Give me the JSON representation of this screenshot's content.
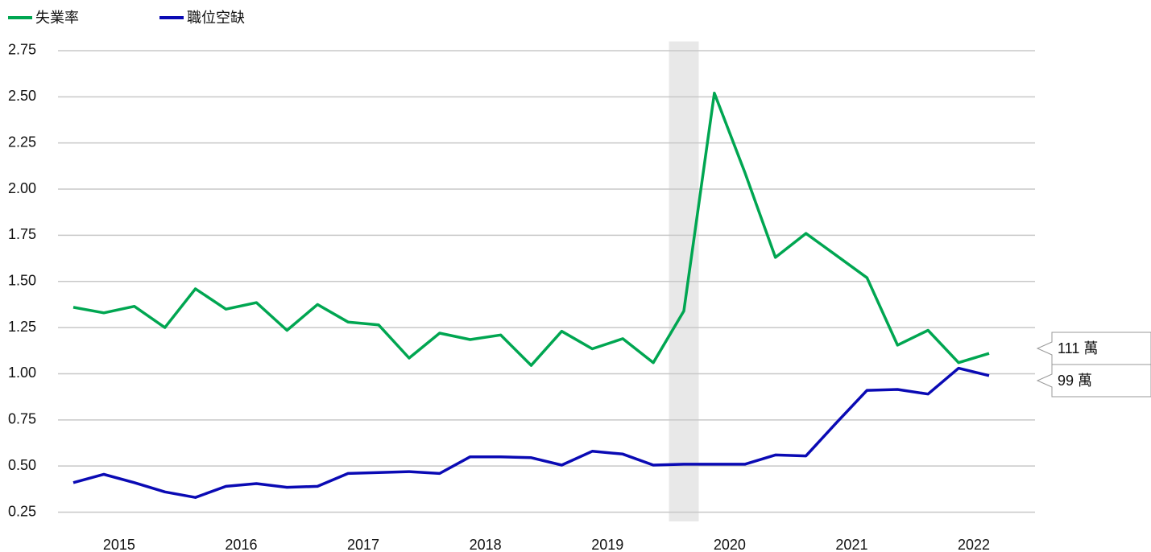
{
  "chart_data": {
    "type": "line",
    "x_labels": [
      "2015",
      "2016",
      "2017",
      "2018",
      "2019",
      "2020",
      "2021",
      "2022"
    ],
    "series": [
      {
        "name": "失業率",
        "color": "#00a651",
        "values": [
          1.36,
          1.33,
          1.365,
          1.25,
          1.46,
          1.35,
          1.385,
          1.235,
          1.375,
          1.28,
          1.265,
          1.085,
          1.22,
          1.185,
          1.21,
          1.045,
          1.23,
          1.135,
          1.19,
          1.06,
          1.34,
          2.52,
          2.09,
          1.63,
          1.76,
          1.64,
          1.52,
          1.155,
          1.235,
          1.06,
          1.11
        ]
      },
      {
        "name": "職位空缺",
        "color": "#0a0ab4",
        "values": [
          0.41,
          0.455,
          0.41,
          0.36,
          0.33,
          0.39,
          0.405,
          0.385,
          0.39,
          0.46,
          0.465,
          0.47,
          0.46,
          0.55,
          0.55,
          0.545,
          0.505,
          0.58,
          0.565,
          0.505,
          0.51,
          0.51,
          0.51,
          0.56,
          0.555,
          0.735,
          0.91,
          0.915,
          0.89,
          1.03,
          0.99
        ]
      }
    ],
    "highlight_index": 20,
    "annotations": [
      "111 萬",
      "99 萬"
    ],
    "ylim": [
      0.2,
      2.8
    ],
    "yticks": [
      0.25,
      {
        "value": 0.5,
        "label": "0.50"
      },
      0.75,
      {
        "value": 1,
        "label": "1.00"
      },
      1.25,
      {
        "value": 1.5,
        "label": "1.50"
      },
      1.75,
      {
        "value": 2,
        "label": "2.00"
      },
      2.25,
      {
        "value": 2.5,
        "label": "2.50"
      },
      2.75
    ],
    "grid": true,
    "legend": "top-left"
  }
}
